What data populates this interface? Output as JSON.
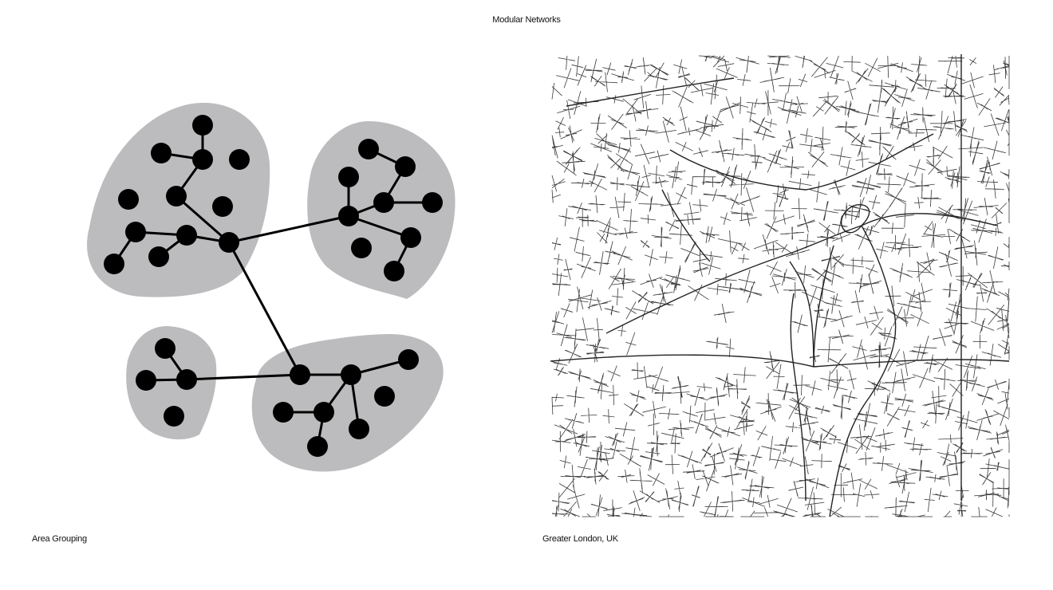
{
  "header": {
    "title": "Modular Networks"
  },
  "left_panel": {
    "caption": "Area Grouping"
  },
  "right_panel": {
    "caption": "Greater London, UK"
  },
  "colors": {
    "cluster_fill": "#bcbcbe",
    "node": "#000000",
    "edge": "#000000",
    "street": "#3a3a3a",
    "background": "#ffffff"
  }
}
